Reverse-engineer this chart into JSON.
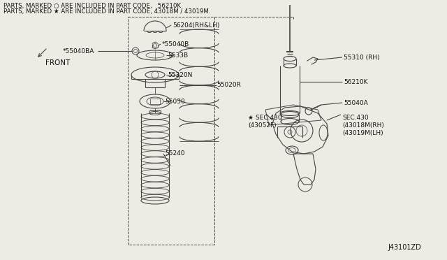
{
  "bg_color": "#eeebe4",
  "line_color": "#444444",
  "title_line1": "PARTS, MARKED ○ ARE INCLUDED IN PART CODE,   56210K",
  "title_line2": "PARTS, MARKED ★ ARE INCLUDED IN PART CODE, 43018M / 43019M.",
  "diagram_id": "J43101ZD",
  "front_label": "FRONT",
  "labels": {
    "56204": "56204(RH&LH)",
    "55040B": "*55040B",
    "55040BA": "*55040BA",
    "5533B": "5533B",
    "55020R": "55020R",
    "55320N": "55320N",
    "55050": "55050",
    "55240": "55240",
    "55310": "55310 (RH)",
    "56210K": "56210K",
    "55040A": "55040A",
    "SEC430a": "★ SEC.430\n(43052F)",
    "SEC430b": "SEC.430\n(43018M(RH)\n(43019M(LH)"
  },
  "font_size": 6.5,
  "title_font_size": 6.2
}
